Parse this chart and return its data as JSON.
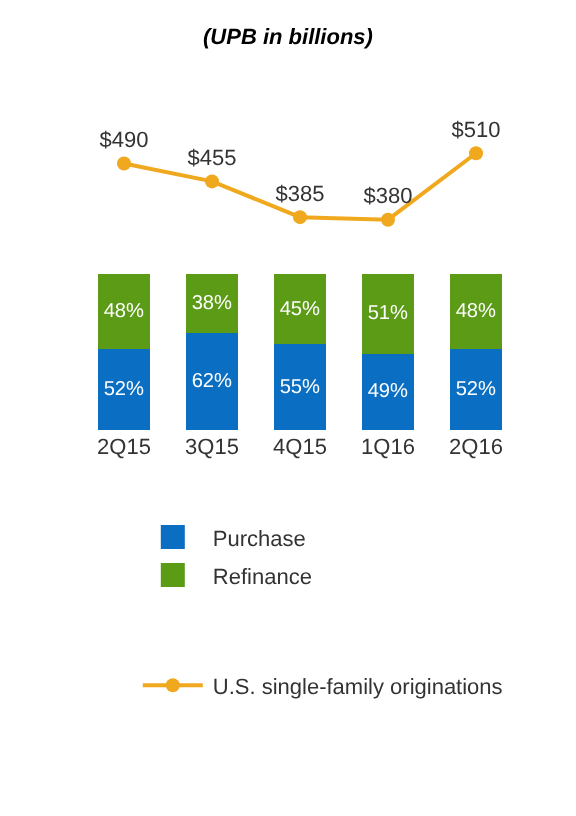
{
  "chart_data": [
    {
      "type": "line",
      "title": "(UPB in billions)",
      "categories": [
        null,
        null,
        null,
        null,
        null
      ],
      "tick_labels": false,
      "legend": "bottom",
      "marker": "circle",
      "line_style": "solid",
      "series": [
        {
          "name": "U.S. single-family originations",
          "color": "#f0a91e",
          "values": [
            490,
            455,
            385,
            380,
            510
          ],
          "value_labels": [
            "$490",
            "$455",
            "$385",
            "$380",
            "$510"
          ]
        }
      ]
    },
    {
      "type": "bar",
      "categories": [
        "2Q15",
        "3Q15",
        "4Q15",
        "1Q16",
        "2Q16"
      ],
      "stacked": true,
      "tick_labels": "x",
      "legend": "bottom",
      "series": [
        {
          "name": "Purchase",
          "color": "#0a6fc2",
          "values": [
            52,
            62,
            55,
            49,
            52
          ],
          "value_labels": [
            "52%",
            "62%",
            "55%",
            "49%",
            "52%"
          ]
        },
        {
          "name": "Refinance",
          "color": "#5b9b16",
          "values": [
            48,
            38,
            45,
            51,
            48
          ],
          "value_labels": [
            "48%",
            "38%",
            "45%",
            "51%",
            "48%"
          ]
        }
      ]
    }
  ]
}
